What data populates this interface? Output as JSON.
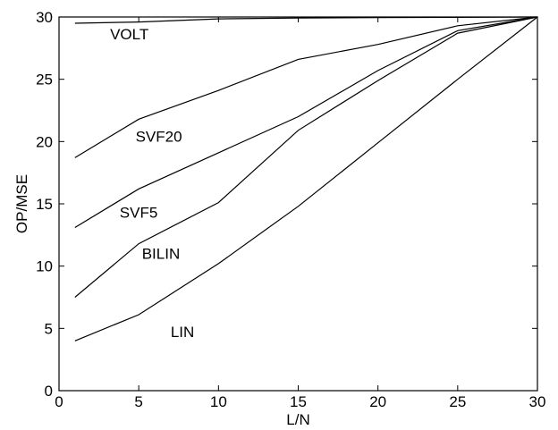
{
  "chart_data": {
    "type": "line",
    "title": "",
    "xlabel": "L/N",
    "ylabel": "OP/MSE",
    "xlim": [
      0,
      30
    ],
    "ylim": [
      0,
      30
    ],
    "xticks": [
      0,
      5,
      10,
      15,
      20,
      25,
      30
    ],
    "yticks": [
      0,
      5,
      10,
      15,
      20,
      25,
      30
    ],
    "grid": false,
    "legend": "none (series labeled inline)",
    "line_color": "#000000",
    "series": [
      {
        "name": "VOLT",
        "x": [
          1,
          5,
          10,
          15,
          20,
          25,
          30
        ],
        "y": [
          29.5,
          29.6,
          29.85,
          29.92,
          29.95,
          29.97,
          30.0
        ],
        "label_at": [
          3.2,
          28.2
        ]
      },
      {
        "name": "SVF20",
        "x": [
          1,
          5,
          10,
          15,
          20,
          25,
          30
        ],
        "y": [
          18.7,
          21.8,
          24.1,
          26.6,
          27.8,
          29.3,
          30.0
        ],
        "label_at": [
          4.8,
          20.0
        ]
      },
      {
        "name": "SVF5",
        "x": [
          1,
          5,
          10,
          15,
          20,
          25,
          30
        ],
        "y": [
          13.1,
          16.2,
          19.1,
          22.0,
          25.7,
          28.9,
          30.0
        ],
        "label_at": [
          3.8,
          13.9
        ]
      },
      {
        "name": "BILIN",
        "x": [
          1,
          5,
          10,
          15,
          20,
          25,
          30
        ],
        "y": [
          7.5,
          11.8,
          15.1,
          20.9,
          24.9,
          28.7,
          30.0
        ],
        "label_at": [
          5.2,
          10.6
        ]
      },
      {
        "name": "LIN",
        "x": [
          1,
          5,
          10,
          15,
          20,
          25,
          30
        ],
        "y": [
          4.0,
          6.1,
          10.2,
          14.8,
          19.9,
          25.0,
          30.0
        ],
        "label_at": [
          7.0,
          4.3
        ]
      }
    ]
  }
}
